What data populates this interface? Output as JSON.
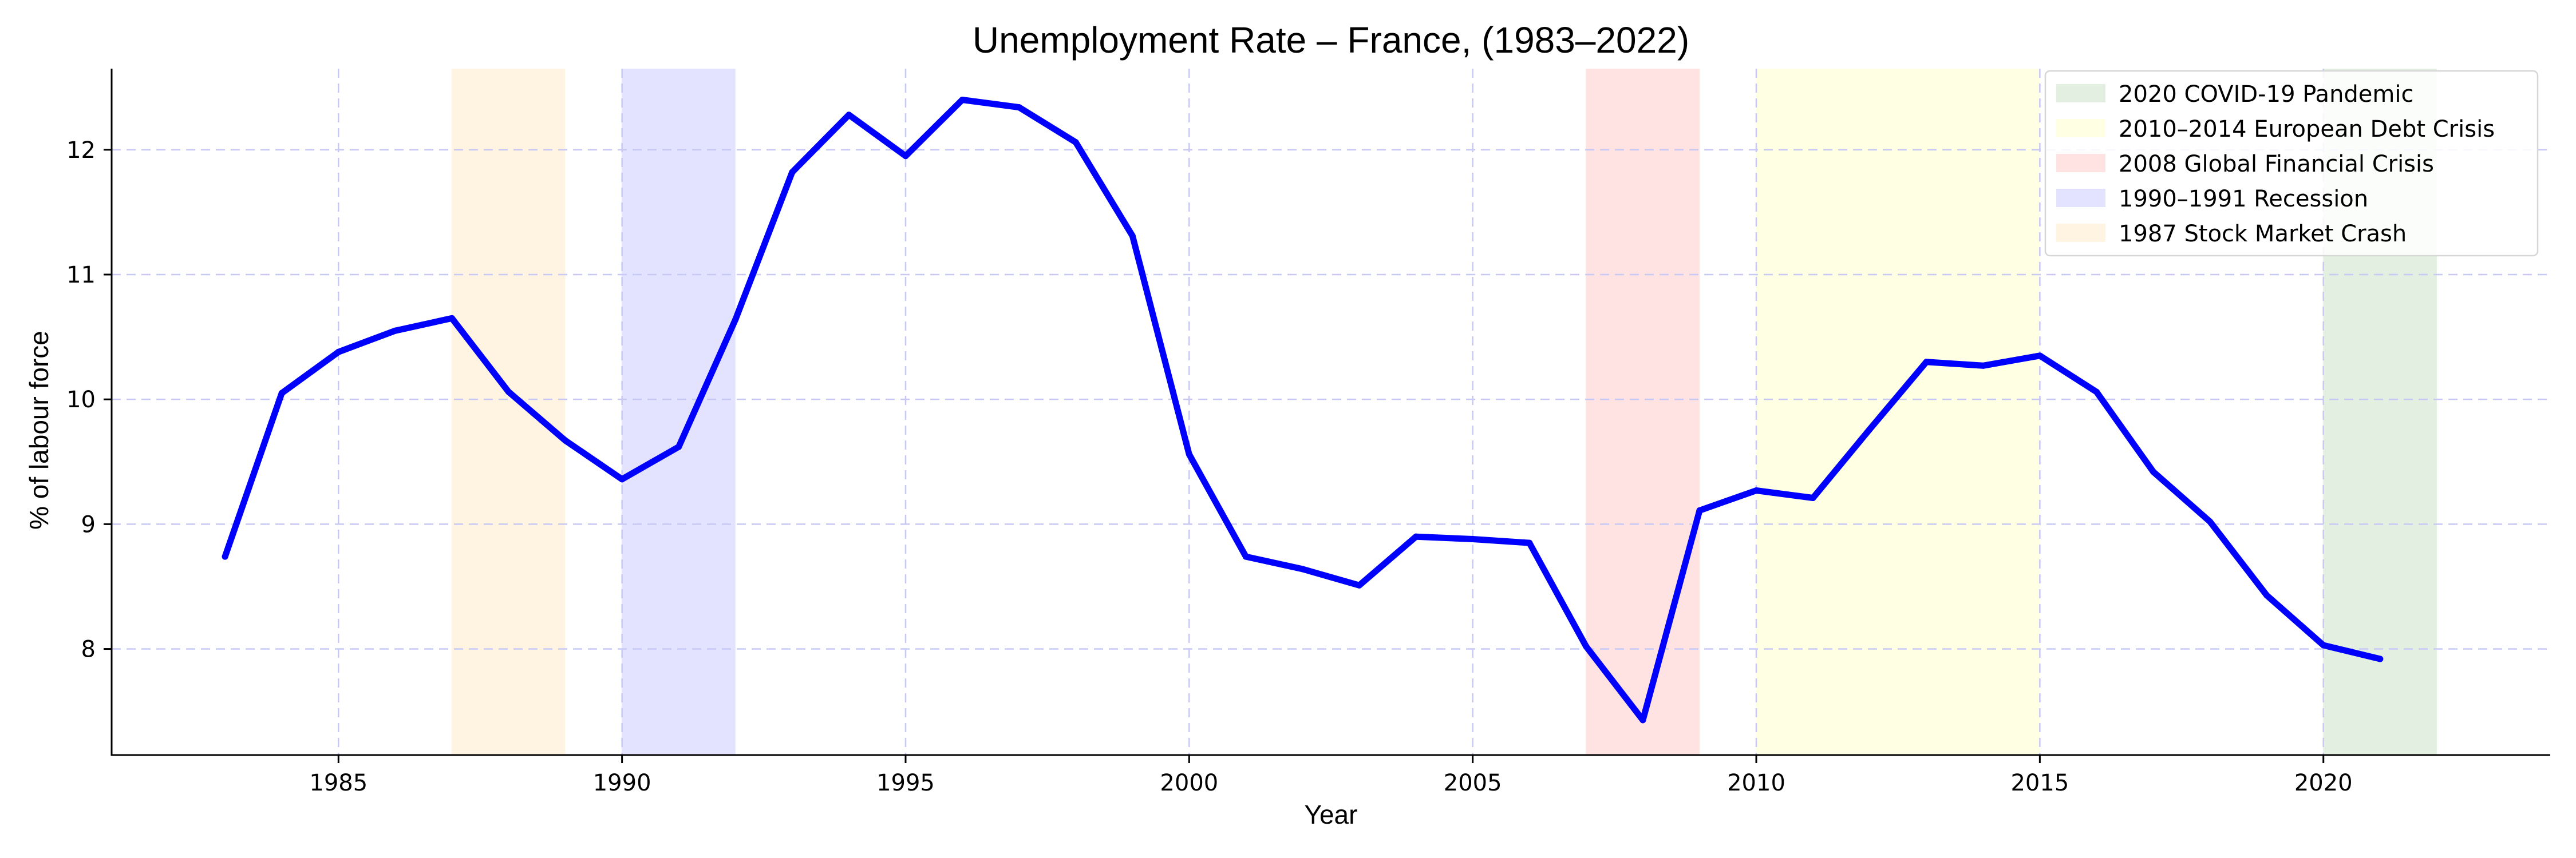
{
  "chart_data": {
    "type": "line",
    "title": "Unemployment Rate – France, (1983–2022)",
    "xlabel": "Year",
    "ylabel": "% of labour force",
    "xlim": [
      1981,
      2024
    ],
    "ylim": [
      7.15,
      12.65
    ],
    "xticks": [
      1985,
      1990,
      1995,
      2000,
      2005,
      2010,
      2015,
      2020
    ],
    "yticks": [
      8,
      9,
      10,
      11,
      12
    ],
    "grid": true,
    "legend_position": "top-right",
    "series": [
      {
        "color": "#0000ff",
        "x": [
          1983,
          1984,
          1985,
          1986,
          1987,
          1988,
          1989,
          1990,
          1991,
          1992,
          1993,
          1994,
          1995,
          1996,
          1997,
          1998,
          1999,
          2000,
          2001,
          2002,
          2003,
          2004,
          2005,
          2006,
          2007,
          2008,
          2009,
          2010,
          2011,
          2012,
          2013,
          2014,
          2015,
          2016,
          2017,
          2018,
          2019,
          2020,
          2021
        ],
        "values": [
          8.74,
          10.05,
          10.38,
          10.55,
          10.65,
          10.06,
          9.67,
          9.36,
          9.62,
          10.64,
          11.82,
          12.28,
          11.95,
          12.4,
          12.34,
          12.06,
          11.31,
          9.56,
          8.74,
          8.64,
          8.51,
          8.9,
          8.88,
          8.85,
          8.02,
          7.43,
          9.11,
          9.27,
          9.21,
          9.76,
          10.3,
          10.27,
          10.35,
          10.06,
          9.42,
          9.02,
          8.43,
          8.03,
          7.92
        ]
      }
    ],
    "shaded_periods": [
      {
        "label": "2020 COVID-19 Pandemic",
        "start": 2020,
        "end": 2022,
        "color": "#e3f0e1"
      },
      {
        "label": "2010–2014 European Debt Crisis",
        "start": 2010,
        "end": 2015,
        "color": "#ffffe3"
      },
      {
        "label": "2008 Global Financial Crisis",
        "start": 2007,
        "end": 2009,
        "color": "#ffe3e3"
      },
      {
        "label": "1990–1991 Recession",
        "start": 1990,
        "end": 1992,
        "color": "#e3e3ff"
      },
      {
        "label": "1987 Stock Market Crash",
        "start": 1987,
        "end": 1989,
        "color": "#fff4e1"
      }
    ]
  }
}
